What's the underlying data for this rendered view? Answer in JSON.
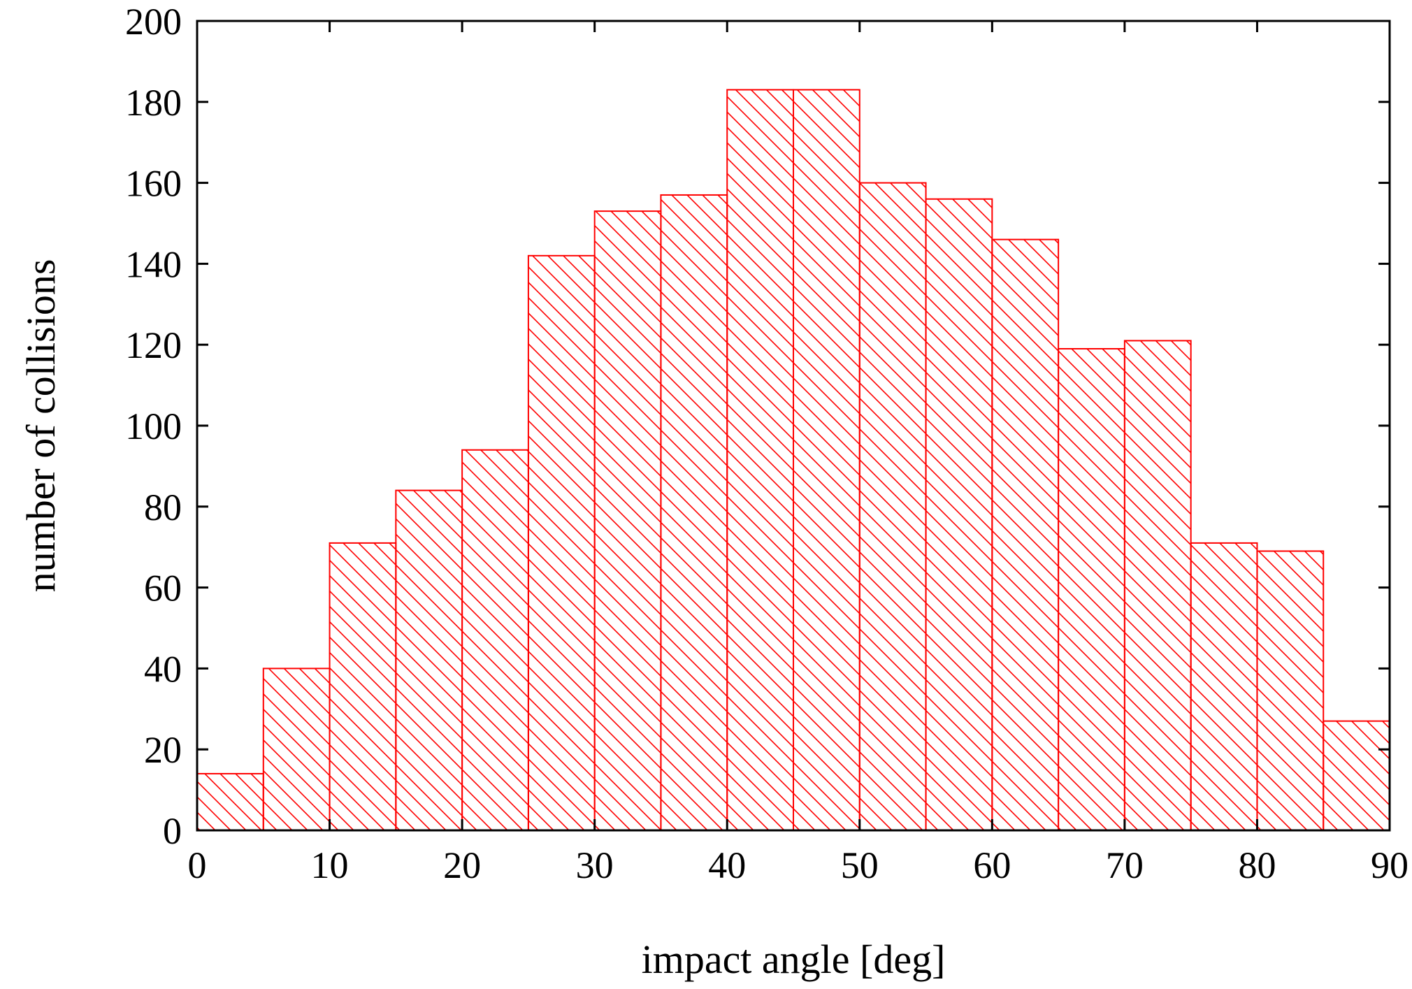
{
  "chart_data": {
    "type": "bar",
    "subtype": "histogram",
    "title": "",
    "xlabel": "impact angle [deg]",
    "ylabel": "number of collisions",
    "xlim": [
      0,
      90
    ],
    "ylim": [
      0,
      200
    ],
    "xticks": [
      0,
      10,
      20,
      30,
      40,
      50,
      60,
      70,
      80,
      90
    ],
    "yticks": [
      0,
      20,
      40,
      60,
      80,
      100,
      120,
      140,
      160,
      180,
      200
    ],
    "bin_width": 5,
    "bin_starts": [
      0,
      5,
      10,
      15,
      20,
      25,
      30,
      35,
      40,
      45,
      50,
      55,
      60,
      65,
      70,
      75,
      80,
      85
    ],
    "values": [
      14,
      40,
      71,
      84,
      94,
      142,
      153,
      157,
      183,
      183,
      160,
      156,
      146,
      119,
      121,
      71,
      69,
      27
    ],
    "bar_color": "#ff0000",
    "fill_pattern": "diagonal-hatch",
    "grid": false,
    "legend": "none"
  }
}
